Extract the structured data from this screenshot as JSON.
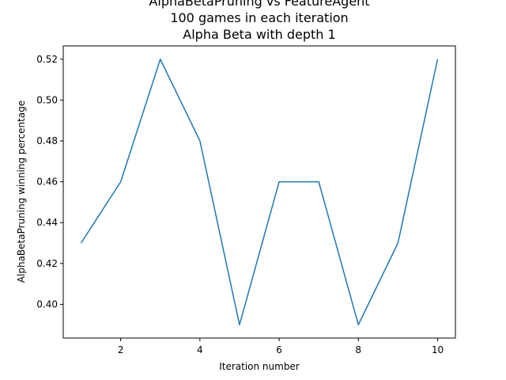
{
  "chart_data": {
    "type": "line",
    "title": [
      "AlphaBetaPruning vs FeatureAgent",
      "100 games in each iteration",
      "Alpha Beta with depth 1"
    ],
    "xlabel": "Iteration number",
    "ylabel": "AlphaBetaPruning winning percentage",
    "x": [
      1,
      2,
      3,
      4,
      5,
      6,
      7,
      8,
      9,
      10
    ],
    "series": [
      {
        "values": [
          0.43,
          0.46,
          0.52,
          0.48,
          0.39,
          0.46,
          0.46,
          0.39,
          0.43,
          0.52
        ],
        "color": "#1f77b4"
      }
    ],
    "xlim": [
      0.55,
      10.45
    ],
    "ylim": [
      0.3835,
      0.5265
    ],
    "xticks": [
      2,
      4,
      6,
      8,
      10
    ],
    "xtick_labels": [
      "2",
      "4",
      "6",
      "8",
      "10"
    ],
    "yticks": [
      0.4,
      0.42,
      0.44,
      0.46,
      0.48,
      0.5,
      0.52
    ],
    "ytick_labels": [
      "0.40",
      "0.42",
      "0.44",
      "0.46",
      "0.48",
      "0.50",
      "0.52"
    ],
    "grid": false,
    "legend": "none"
  }
}
